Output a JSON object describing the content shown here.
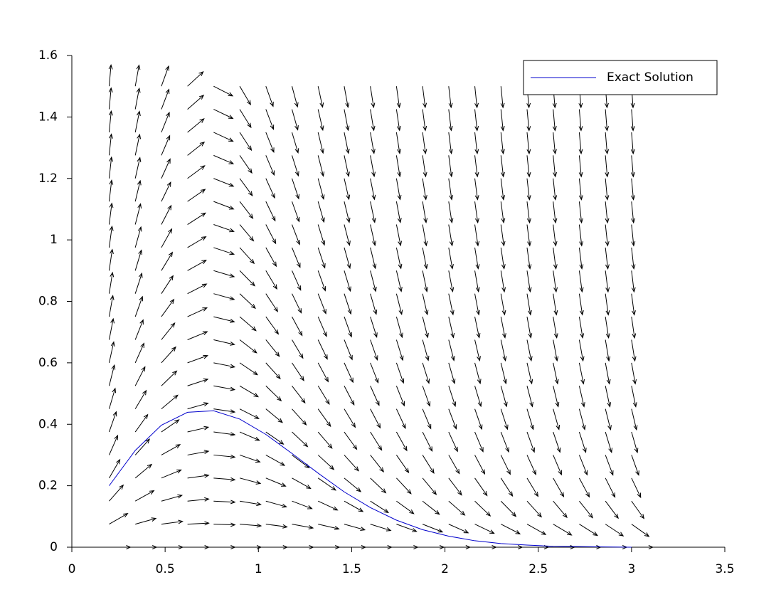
{
  "chart_data": {
    "type": "line",
    "x": [
      0.2,
      0.34,
      0.48,
      0.62,
      0.76,
      0.9,
      1.04,
      1.18,
      1.32,
      1.46,
      1.6,
      1.74,
      1.88,
      2.02,
      2.16,
      2.3,
      2.44,
      2.58,
      2.72,
      2.86,
      3.0
    ],
    "series": [
      {
        "name": "Exact Solution",
        "color": "#0000cc",
        "values": [
          0.2,
          0.315,
          0.397,
          0.439,
          0.444,
          0.417,
          0.367,
          0.305,
          0.241,
          0.18,
          0.129,
          0.088,
          0.057,
          0.036,
          0.021,
          0.012,
          0.007,
          0.003,
          0.002,
          0.001,
          0
        ]
      }
    ],
    "field": {
      "color": "#000000",
      "y": [
        0,
        0.075,
        0.15,
        0.225,
        0.3,
        0.375,
        0.45,
        0.525,
        0.6,
        0.675,
        0.75,
        0.825,
        0.9,
        0.975,
        1.05,
        1.125,
        1.2,
        1.275,
        1.35,
        1.425,
        1.5
      ],
      "slopes": [
        [
          0,
          0.35,
          0.69,
          1.04,
          1.38,
          1.73,
          2.07,
          2.42,
          2.76,
          3.11,
          3.45,
          3.8,
          4.14,
          4.49,
          4.83,
          5.18,
          5.52,
          5.87,
          6.21,
          6.56,
          6.9
        ],
        [
          0,
          0.17,
          0.34,
          0.51,
          0.68,
          0.85,
          1.02,
          1.19,
          1.36,
          1.53,
          1.7,
          1.87,
          2.03,
          2.2,
          2.37,
          2.54,
          2.71,
          2.88,
          3.05,
          3.22,
          3.39
        ],
        [
          0,
          0.08,
          0.17,
          0.25,
          0.34,
          0.42,
          0.51,
          0.59,
          0.67,
          0.76,
          0.84,
          0.93,
          1.01,
          1.09,
          1.18,
          1.26,
          1.35,
          1.43,
          1.52,
          1.6,
          1.68
        ],
        [
          0,
          0.03,
          0.06,
          0.08,
          0.11,
          0.14,
          0.17,
          0.2,
          0.22,
          0.25,
          0.28,
          0.31,
          0.34,
          0.36,
          0.39,
          0.42,
          0.45,
          0.48,
          0.5,
          0.53,
          0.56
        ],
        [
          0,
          -0.02,
          -0.03,
          -0.05,
          -0.06,
          -0.08,
          -0.09,
          -0.11,
          -0.12,
          -0.14,
          -0.15,
          -0.17,
          -0.18,
          -0.2,
          -0.21,
          -0.23,
          -0.24,
          -0.26,
          -0.28,
          -0.29,
          -0.31
        ],
        [
          0,
          -0.05,
          -0.1,
          -0.16,
          -0.21,
          -0.26,
          -0.31,
          -0.36,
          -0.41,
          -0.47,
          -0.52,
          -0.57,
          -0.62,
          -0.67,
          -0.72,
          -0.78,
          -0.83,
          -0.88,
          -0.93,
          -0.98,
          -1.03
        ],
        [
          0,
          -0.08,
          -0.17,
          -0.25,
          -0.34,
          -0.42,
          -0.5,
          -0.59,
          -0.67,
          -0.75,
          -0.84,
          -0.92,
          -1.01,
          -1.09,
          -1.17,
          -1.26,
          -1.34,
          -1.43,
          -1.51,
          -1.59,
          -1.68
        ],
        [
          0,
          -0.11,
          -0.23,
          -0.34,
          -0.45,
          -0.57,
          -0.68,
          -0.79,
          -0.91,
          -1.02,
          -1.13,
          -1.25,
          -1.36,
          -1.48,
          -1.59,
          -1.7,
          -1.82,
          -1.93,
          -2.04,
          -2.16,
          -2.27
        ],
        [
          0,
          -0.14,
          -0.28,
          -0.42,
          -0.56,
          -0.71,
          -0.85,
          -0.99,
          -1.13,
          -1.27,
          -1.41,
          -1.55,
          -1.69,
          -1.83,
          -1.98,
          -2.12,
          -2.26,
          -2.4,
          -2.54,
          -2.68,
          -2.82
        ],
        [
          0,
          -0.17,
          -0.34,
          -0.5,
          -0.67,
          -0.84,
          -1.01,
          -1.17,
          -1.34,
          -1.51,
          -1.68,
          -1.84,
          -2.01,
          -2.18,
          -2.35,
          -2.51,
          -2.68,
          -2.85,
          -3.02,
          -3.18,
          -3.35
        ],
        [
          0,
          -0.19,
          -0.39,
          -0.58,
          -0.77,
          -0.97,
          -1.16,
          -1.35,
          -1.55,
          -1.74,
          -1.93,
          -2.12,
          -2.32,
          -2.51,
          -2.7,
          -2.9,
          -3.09,
          -3.28,
          -3.48,
          -3.67,
          -3.86
        ],
        [
          0,
          -0.22,
          -0.44,
          -0.65,
          -0.87,
          -1.09,
          -1.31,
          -1.53,
          -1.74,
          -1.96,
          -2.18,
          -2.4,
          -2.61,
          -2.83,
          -3.05,
          -3.27,
          -3.49,
          -3.7,
          -3.92,
          -4.14,
          -4.36
        ],
        [
          0,
          -0.24,
          -0.48,
          -0.73,
          -0.97,
          -1.21,
          -1.45,
          -1.69,
          -1.94,
          -2.18,
          -2.42,
          -2.66,
          -2.91,
          -3.15,
          -3.39,
          -3.63,
          -3.87,
          -4.12,
          -4.36,
          -4.6,
          -4.84
        ],
        [
          0,
          -0.27,
          -0.53,
          -0.8,
          -1.06,
          -1.33,
          -1.6,
          -1.86,
          -2.13,
          -2.39,
          -2.66,
          -2.92,
          -3.19,
          -3.46,
          -3.72,
          -3.99,
          -4.25,
          -4.52,
          -4.79,
          -5.05,
          -5.32
        ],
        [
          0,
          -0.29,
          -0.58,
          -0.87,
          -1.16,
          -1.45,
          -1.74,
          -2.02,
          -2.31,
          -2.6,
          -2.89,
          -3.18,
          -3.47,
          -3.76,
          -4.05,
          -4.34,
          -4.63,
          -4.92,
          -5.21,
          -5.5,
          -5.79
        ],
        [
          0,
          -0.31,
          -0.62,
          -0.94,
          -1.25,
          -1.56,
          -1.87,
          -2.19,
          -2.5,
          -2.81,
          -3.12,
          -3.44,
          -3.75,
          -4.06,
          -4.37,
          -4.69,
          -5,
          -5.31,
          -5.62,
          -5.94,
          -6.25
        ],
        [
          0,
          -0.34,
          -0.67,
          -1.01,
          -1.34,
          -1.68,
          -2.01,
          -2.35,
          -2.68,
          -3.02,
          -3.35,
          -3.69,
          -4.02,
          -4.36,
          -4.69,
          -5.03,
          -5.36,
          -5.7,
          -6.03,
          -6.37,
          -6.71
        ],
        [
          0,
          -0.36,
          -0.72,
          -1.07,
          -1.43,
          -1.79,
          -2.15,
          -2.51,
          -2.86,
          -3.22,
          -3.58,
          -3.94,
          -4.29,
          -4.65,
          -5.01,
          -5.37,
          -5.73,
          -6.08,
          -6.44,
          -6.8,
          -7.16
        ],
        [
          0,
          -0.38,
          -0.76,
          -1.14,
          -1.52,
          -1.9,
          -2.28,
          -2.66,
          -3.04,
          -3.42,
          -3.8,
          -4.18,
          -4.56,
          -4.95,
          -5.33,
          -5.71,
          -6.09,
          -6.47,
          -6.85,
          -7.23,
          -7.61
        ],
        [
          0,
          -0.4,
          -0.81,
          -1.21,
          -1.61,
          -2.01,
          -2.42,
          -2.82,
          -3.22,
          -3.62,
          -4.03,
          -4.43,
          -4.83,
          -5.24,
          -5.64,
          -6.04,
          -6.44,
          -6.85,
          -7.25,
          -7.65,
          -8.06
        ],
        [
          0,
          -0.43,
          -0.85,
          -1.28,
          -1.7,
          -2.13,
          -2.55,
          -2.98,
          -3.4,
          -3.83,
          -4.25,
          -4.68,
          -5.1,
          -5.53,
          -5.95,
          -6.38,
          -6.8,
          -7.23,
          -7.65,
          -8.08,
          -8.5
        ]
      ]
    },
    "xlim": [
      0,
      3.5
    ],
    "xticks": [
      0,
      0.5,
      1,
      1.5,
      2,
      2.5,
      3,
      3.5
    ],
    "ylim": [
      0,
      1.6
    ],
    "yticks": [
      0,
      0.2,
      0.4,
      0.6,
      0.8,
      1,
      1.2,
      1.4,
      1.6
    ],
    "legend": "top-right"
  }
}
